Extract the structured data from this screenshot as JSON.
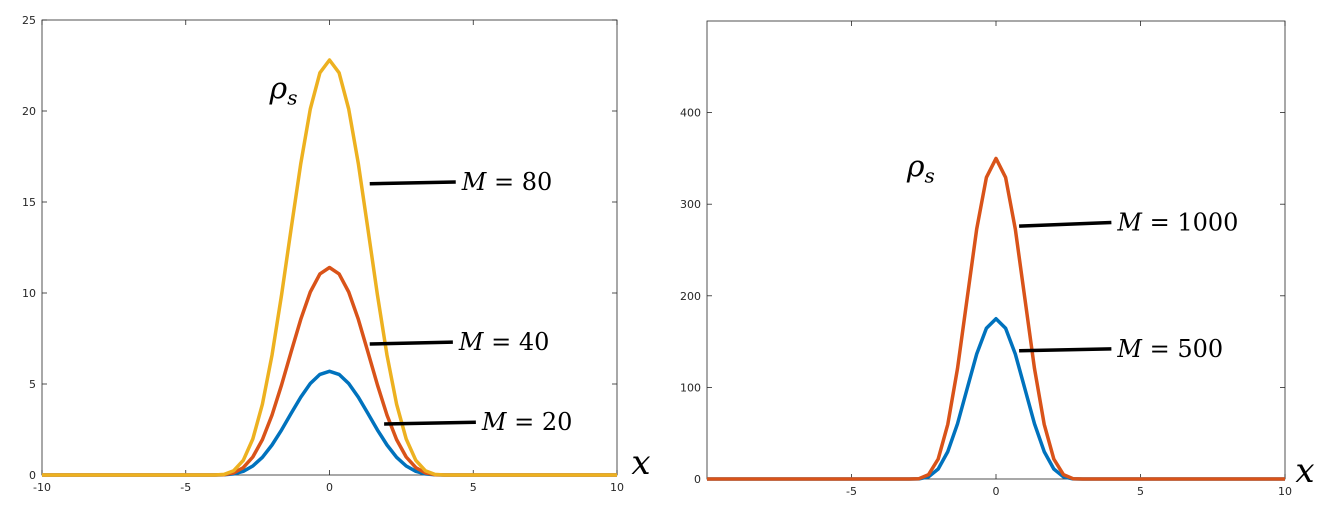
{
  "chart_data": [
    {
      "type": "line",
      "x_range": [
        -10,
        10
      ],
      "ylim": [
        0,
        25
      ],
      "xticks": [
        -10,
        -5,
        0,
        5,
        10
      ],
      "yticks": [
        0,
        5,
        10,
        15,
        20,
        25
      ],
      "xlabel": "x",
      "grid": false,
      "series": [
        {
          "name": "M = 20",
          "color": "#0072BD",
          "peak": 5.7,
          "halfwidth": 4.2
        },
        {
          "name": "M = 40",
          "color": "#D95319",
          "peak": 11.4,
          "halfwidth": 4.2
        },
        {
          "name": "M = 80",
          "color": "#EDB120",
          "peak": 22.8,
          "halfwidth": 4.2
        }
      ],
      "annotations": [
        {
          "text": "ρ",
          "sub": "s",
          "target": "M = 80",
          "x": -1.6,
          "y": 20.7
        },
        {
          "label": "M",
          "value": "20",
          "point_x": 1.9,
          "point_y": 2.8,
          "label_x": 5.3,
          "label_y": 2.9
        },
        {
          "label": "M",
          "value": "40",
          "point_x": 1.4,
          "point_y": 7.2,
          "label_x": 4.5,
          "label_y": 7.3
        },
        {
          "label": "M",
          "value": "80",
          "point_x": 1.4,
          "point_y": 16.0,
          "label_x": 4.6,
          "label_y": 16.1
        }
      ]
    },
    {
      "type": "line",
      "x_range": [
        -10,
        10
      ],
      "ylim": [
        0,
        500
      ],
      "xticks": [
        -5,
        0,
        5,
        10
      ],
      "yticks": [
        0,
        100,
        200,
        300,
        400
      ],
      "xlabel": "x",
      "grid": false,
      "series": [
        {
          "name": "M = 500",
          "color": "#0072BD",
          "peak": 175,
          "halfwidth": 3.0
        },
        {
          "name": "M = 1000",
          "color": "#D95319",
          "peak": 350,
          "halfwidth": 3.0
        }
      ],
      "annotations": [
        {
          "text": "ρ",
          "sub": "s",
          "target": "M = 1000",
          "x": -2.6,
          "y": 330
        },
        {
          "label": "M",
          "value": "500",
          "point_x": 0.8,
          "point_y": 140,
          "label_x": 4.2,
          "label_y": 142
        },
        {
          "label": "M",
          "value": "1000",
          "point_x": 0.8,
          "point_y": 276,
          "label_x": 4.2,
          "label_y": 280
        }
      ]
    }
  ]
}
